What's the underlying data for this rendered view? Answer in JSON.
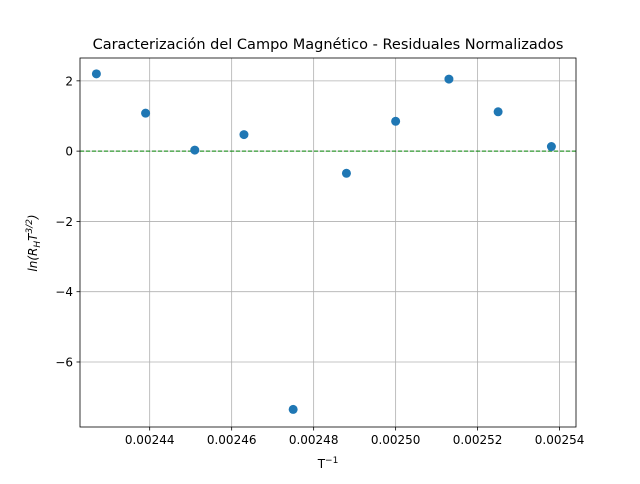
{
  "chart_data": {
    "type": "scatter",
    "title": "Caracterización del Campo Magnético - Residuales Normalizados",
    "xlabel": "T",
    "xlabel_sup": "−1",
    "ylabel_prefix": "ln(R",
    "ylabel_sub": "H",
    "ylabel_mid": "T",
    "ylabel_sup": "3/2",
    "ylabel_suffix": ")",
    "xlim": [
      0.002423,
      0.002544
    ],
    "ylim": [
      -7.85,
      2.65
    ],
    "xticks": [
      0.00244,
      0.00246,
      0.00248,
      0.0025,
      0.00252,
      0.00254
    ],
    "xtick_labels": [
      "0.00244",
      "0.00246",
      "0.00248",
      "0.00250",
      "0.00252",
      "0.00254"
    ],
    "yticks": [
      2,
      0,
      -2,
      -4,
      -6
    ],
    "ytick_labels": [
      "2",
      "0",
      "−2",
      "−4",
      "−6"
    ],
    "grid": true,
    "reference_line": {
      "y": 0,
      "style": "dashed",
      "color": "#008000"
    },
    "marker_color": "#1f77b4",
    "x": [
      0.002427,
      0.002439,
      0.002451,
      0.002463,
      0.002475,
      0.002488,
      0.0025,
      0.002513,
      0.002525,
      0.002538
    ],
    "y": [
      2.2,
      1.08,
      0.03,
      0.47,
      -7.35,
      -0.63,
      0.85,
      2.05,
      1.12,
      0.13
    ]
  }
}
